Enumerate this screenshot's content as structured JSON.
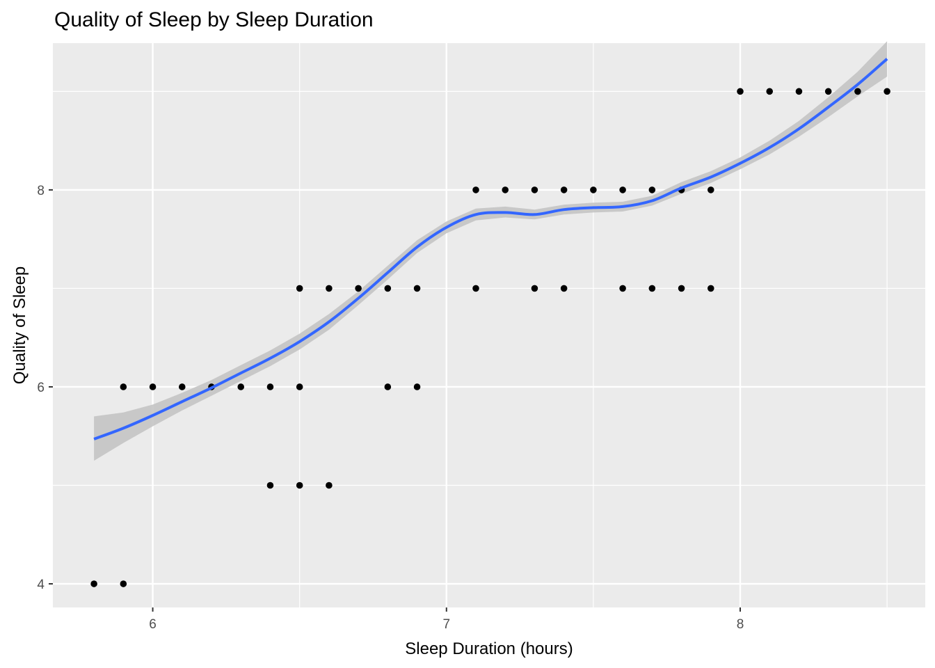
{
  "chart_data": {
    "type": "scatter",
    "title": "Quality of Sleep by Sleep Duration",
    "xlabel": "Sleep Duration (hours)",
    "ylabel": "Quality of Sleep",
    "xlim": [
      5.66,
      8.63
    ],
    "ylim": [
      3.76,
      9.49
    ],
    "x_ticks": [
      6,
      7,
      8
    ],
    "y_ticks": [
      4,
      6,
      8
    ],
    "grid": true,
    "panel_background": "#ebebeb",
    "grid_color": "#ffffff",
    "point_color": "#000000",
    "smooth_color": "#3366ff",
    "ribbon_color": "#c4c4c4",
    "points": [
      {
        "x": 5.8,
        "y": 4
      },
      {
        "x": 5.9,
        "y": 4
      },
      {
        "x": 5.9,
        "y": 6
      },
      {
        "x": 6.0,
        "y": 6
      },
      {
        "x": 6.1,
        "y": 6
      },
      {
        "x": 6.2,
        "y": 6
      },
      {
        "x": 6.3,
        "y": 6
      },
      {
        "x": 6.4,
        "y": 6
      },
      {
        "x": 6.5,
        "y": 6
      },
      {
        "x": 6.4,
        "y": 5
      },
      {
        "x": 6.5,
        "y": 5
      },
      {
        "x": 6.6,
        "y": 5
      },
      {
        "x": 6.5,
        "y": 7
      },
      {
        "x": 6.6,
        "y": 7
      },
      {
        "x": 6.7,
        "y": 7
      },
      {
        "x": 6.8,
        "y": 7
      },
      {
        "x": 6.9,
        "y": 7
      },
      {
        "x": 6.8,
        "y": 6
      },
      {
        "x": 6.9,
        "y": 6
      },
      {
        "x": 7.1,
        "y": 7
      },
      {
        "x": 7.3,
        "y": 7
      },
      {
        "x": 7.4,
        "y": 7
      },
      {
        "x": 7.6,
        "y": 7
      },
      {
        "x": 7.7,
        "y": 7
      },
      {
        "x": 7.8,
        "y": 7
      },
      {
        "x": 7.9,
        "y": 7
      },
      {
        "x": 7.1,
        "y": 8
      },
      {
        "x": 7.2,
        "y": 8
      },
      {
        "x": 7.3,
        "y": 8
      },
      {
        "x": 7.4,
        "y": 8
      },
      {
        "x": 7.5,
        "y": 8
      },
      {
        "x": 7.6,
        "y": 8
      },
      {
        "x": 7.7,
        "y": 8
      },
      {
        "x": 7.8,
        "y": 8
      },
      {
        "x": 7.9,
        "y": 8
      },
      {
        "x": 8.0,
        "y": 9
      },
      {
        "x": 8.1,
        "y": 9
      },
      {
        "x": 8.2,
        "y": 9
      },
      {
        "x": 8.3,
        "y": 9
      },
      {
        "x": 8.4,
        "y": 9
      },
      {
        "x": 8.5,
        "y": 9
      }
    ],
    "smooth_line": [
      {
        "x": 5.8,
        "y": 5.47,
        "lo": 5.25,
        "hi": 5.7
      },
      {
        "x": 5.9,
        "y": 5.58,
        "lo": 5.43,
        "hi": 5.74
      },
      {
        "x": 6.0,
        "y": 5.71,
        "lo": 5.6,
        "hi": 5.82
      },
      {
        "x": 6.1,
        "y": 5.85,
        "lo": 5.76,
        "hi": 5.94
      },
      {
        "x": 6.2,
        "y": 5.99,
        "lo": 5.91,
        "hi": 6.07
      },
      {
        "x": 6.3,
        "y": 6.14,
        "lo": 6.06,
        "hi": 6.22
      },
      {
        "x": 6.4,
        "y": 6.29,
        "lo": 6.21,
        "hi": 6.37
      },
      {
        "x": 6.5,
        "y": 6.46,
        "lo": 6.38,
        "hi": 6.54
      },
      {
        "x": 6.6,
        "y": 6.66,
        "lo": 6.58,
        "hi": 6.74
      },
      {
        "x": 6.7,
        "y": 6.9,
        "lo": 6.83,
        "hi": 6.97
      },
      {
        "x": 6.8,
        "y": 7.16,
        "lo": 7.09,
        "hi": 7.23
      },
      {
        "x": 6.9,
        "y": 7.42,
        "lo": 7.36,
        "hi": 7.49
      },
      {
        "x": 7.0,
        "y": 7.62,
        "lo": 7.56,
        "hi": 7.68
      },
      {
        "x": 7.1,
        "y": 7.75,
        "lo": 7.69,
        "hi": 7.81
      },
      {
        "x": 7.2,
        "y": 7.77,
        "lo": 7.72,
        "hi": 7.83
      },
      {
        "x": 7.3,
        "y": 7.75,
        "lo": 7.7,
        "hi": 7.8
      },
      {
        "x": 7.4,
        "y": 7.8,
        "lo": 7.75,
        "hi": 7.85
      },
      {
        "x": 7.5,
        "y": 7.82,
        "lo": 7.77,
        "hi": 7.87
      },
      {
        "x": 7.6,
        "y": 7.83,
        "lo": 7.78,
        "hi": 7.88
      },
      {
        "x": 7.7,
        "y": 7.89,
        "lo": 7.84,
        "hi": 7.94
      },
      {
        "x": 7.8,
        "y": 8.02,
        "lo": 7.96,
        "hi": 8.08
      },
      {
        "x": 7.9,
        "y": 8.13,
        "lo": 8.07,
        "hi": 8.19
      },
      {
        "x": 8.0,
        "y": 8.27,
        "lo": 8.21,
        "hi": 8.33
      },
      {
        "x": 8.1,
        "y": 8.43,
        "lo": 8.36,
        "hi": 8.5
      },
      {
        "x": 8.2,
        "y": 8.62,
        "lo": 8.54,
        "hi": 8.7
      },
      {
        "x": 8.3,
        "y": 8.84,
        "lo": 8.74,
        "hi": 8.94
      },
      {
        "x": 8.4,
        "y": 9.07,
        "lo": 8.95,
        "hi": 9.2
      },
      {
        "x": 8.5,
        "y": 9.33,
        "lo": 9.15,
        "hi": 9.51
      }
    ]
  }
}
